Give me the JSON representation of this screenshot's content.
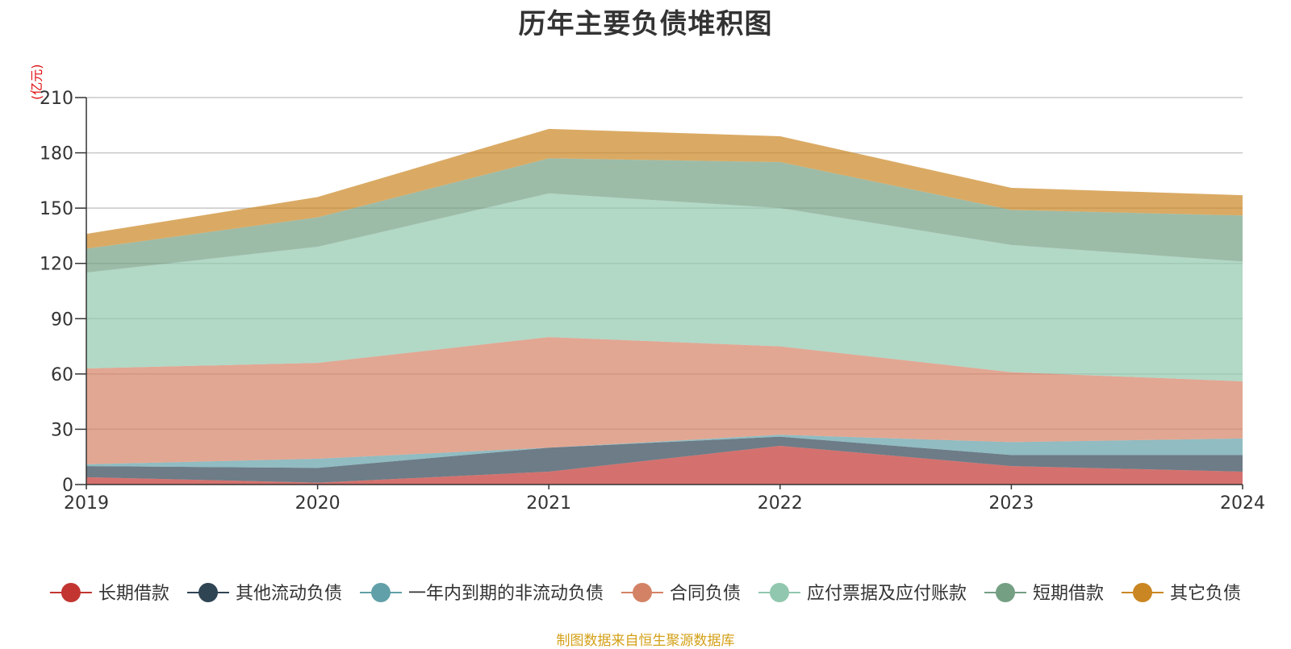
{
  "chart_data": {
    "type": "area",
    "title": "历年主要负债堆积图",
    "unit": "(亿元)",
    "x": [
      "2019",
      "2020",
      "2021",
      "2022",
      "2023",
      "2024"
    ],
    "ylim": [
      0,
      210
    ],
    "yticks": [
      0,
      30,
      60,
      90,
      120,
      150,
      180,
      210
    ],
    "grid": true,
    "stacked": true,
    "legend_position": "bottom",
    "series": [
      {
        "name": "长期借款",
        "color": "#c23531",
        "values": [
          4,
          1,
          7,
          21,
          10,
          7
        ]
      },
      {
        "name": "其他流动负债",
        "color": "#2f4554",
        "values": [
          6,
          8,
          13,
          5,
          6,
          9
        ]
      },
      {
        "name": "一年内到期的非流动负债",
        "color": "#61a0a8",
        "values": [
          1,
          5,
          0,
          1,
          7,
          9
        ]
      },
      {
        "name": "合同负债",
        "color": "#d48265",
        "values": [
          52,
          52,
          60,
          48,
          38,
          31
        ]
      },
      {
        "name": "应付票据及应付账款",
        "color": "#91c7ae",
        "values": [
          52,
          63,
          78,
          75,
          69,
          65
        ]
      },
      {
        "name": "短期借款",
        "color": "#749f83",
        "values": [
          13,
          16,
          19,
          25,
          19,
          25
        ]
      },
      {
        "name": "其它负债",
        "color": "#ca8622",
        "values": [
          8,
          11,
          16,
          14,
          12,
          11
        ]
      }
    ]
  },
  "source_note": "制图数据来自恒生聚源数据库"
}
